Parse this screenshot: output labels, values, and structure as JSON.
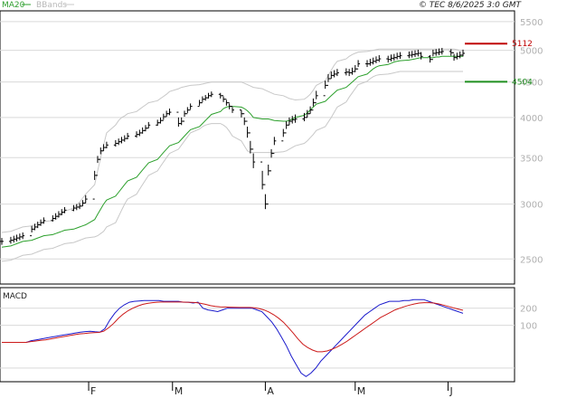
{
  "header": {
    "legend_ma": "MA20",
    "legend_bbands": "BBands",
    "copyright": "© TEC 8/6/2025 3:0 GMT"
  },
  "colors": {
    "price": "#000000",
    "ma20": "#2ca02c",
    "bbands": "#c8c8c8",
    "grid": "#d9d9d9",
    "resistance": "#c00000",
    "support": "#1f8f1f",
    "macd": "#1a1acc",
    "signal": "#cc1a1a",
    "axis_text": "#b0b0b0"
  },
  "chart_data": [
    {
      "type": "ohlc",
      "panel": "price",
      "x": [
        "2025-01-03",
        "2025-01-06",
        "2025-01-07",
        "2025-01-08",
        "2025-01-09",
        "2025-01-10",
        "2025-01-13",
        "2025-01-14",
        "2025-01-15",
        "2025-01-16",
        "2025-01-17",
        "2025-01-20",
        "2025-01-21",
        "2025-01-22",
        "2025-01-23",
        "2025-01-24",
        "2025-01-27",
        "2025-01-28",
        "2025-01-29",
        "2025-01-30",
        "2025-01-31",
        "2025-02-03",
        "2025-02-04",
        "2025-02-05",
        "2025-02-06",
        "2025-02-07",
        "2025-02-10",
        "2025-02-11",
        "2025-02-12",
        "2025-02-13",
        "2025-02-14",
        "2025-02-17",
        "2025-02-18",
        "2025-02-19",
        "2025-02-20",
        "2025-02-21",
        "2025-02-24",
        "2025-02-25",
        "2025-02-26",
        "2025-02-27",
        "2025-02-28",
        "2025-03-03",
        "2025-03-04",
        "2025-03-05",
        "2025-03-06",
        "2025-03-07",
        "2025-03-10",
        "2025-03-11",
        "2025-03-12",
        "2025-03-13",
        "2025-03-14",
        "2025-03-17",
        "2025-03-18",
        "2025-03-19",
        "2025-03-20",
        "2025-03-21",
        "2025-03-24",
        "2025-03-25",
        "2025-03-26",
        "2025-03-27",
        "2025-03-28",
        "2025-03-31",
        "2025-04-01",
        "2025-04-02",
        "2025-04-03",
        "2025-04-04",
        "2025-04-07",
        "2025-04-08",
        "2025-04-09",
        "2025-04-10",
        "2025-04-11",
        "2025-04-14",
        "2025-04-15",
        "2025-04-16",
        "2025-04-17",
        "2025-04-18",
        "2025-04-21",
        "2025-04-22",
        "2025-04-23",
        "2025-04-24",
        "2025-04-25",
        "2025-04-28",
        "2025-04-29",
        "2025-04-30",
        "2025-05-01",
        "2025-05-02",
        "2025-05-05",
        "2025-05-06",
        "2025-05-07",
        "2025-05-08",
        "2025-05-09",
        "2025-05-12",
        "2025-05-13",
        "2025-05-14",
        "2025-05-15",
        "2025-05-16",
        "2025-05-19",
        "2025-05-20",
        "2025-05-21",
        "2025-05-22",
        "2025-05-23",
        "2025-05-26",
        "2025-05-27",
        "2025-05-28",
        "2025-05-29",
        "2025-05-30",
        "2025-06-02",
        "2025-06-03",
        "2025-06-04",
        "2025-06-05",
        "2025-06-06"
      ],
      "close": [
        2650,
        2660,
        2670,
        2680,
        2690,
        2700,
        2760,
        2780,
        2800,
        2820,
        2840,
        2860,
        2880,
        2900,
        2920,
        2940,
        2960,
        2970,
        2980,
        3010,
        3050,
        3300,
        3480,
        3580,
        3620,
        3650,
        3670,
        3690,
        3710,
        3730,
        3760,
        3780,
        3800,
        3830,
        3860,
        3900,
        3930,
        3960,
        4010,
        4050,
        4070,
        3920,
        3950,
        4050,
        4100,
        4150,
        4200,
        4250,
        4270,
        4300,
        4320,
        4300,
        4250,
        4200,
        4150,
        4100,
        4050,
        3950,
        3800,
        3600,
        3450,
        3200,
        3000,
        3350,
        3550,
        3700,
        3800,
        3900,
        3950,
        3970,
        3980,
        4000,
        4050,
        4100,
        4200,
        4300,
        4450,
        4550,
        4600,
        4620,
        4640,
        4650,
        4640,
        4660,
        4700,
        4780,
        4780,
        4800,
        4820,
        4840,
        4860,
        4850,
        4870,
        4880,
        4900,
        4910,
        4920,
        4930,
        4940,
        4950,
        4900,
        4850,
        4950,
        4960,
        4970,
        4980,
        4960,
        4880,
        4900,
        4920,
        4950
      ],
      "high": [
        2680,
        2690,
        2700,
        2710,
        2720,
        2730,
        2790,
        2810,
        2830,
        2850,
        2870,
        2890,
        2910,
        2930,
        2950,
        2970,
        2990,
        3000,
        3010,
        3040,
        3090,
        3350,
        3520,
        3620,
        3660,
        3690,
        3710,
        3730,
        3750,
        3770,
        3800,
        3820,
        3840,
        3870,
        3900,
        3940,
        3970,
        4000,
        4050,
        4090,
        4120,
        4000,
        4000,
        4090,
        4140,
        4190,
        4240,
        4290,
        4310,
        4340,
        4360,
        4340,
        4290,
        4240,
        4190,
        4140,
        4100,
        4000,
        3880,
        3700,
        3550,
        3350,
        3100,
        3420,
        3600,
        3750,
        3850,
        3950,
        4000,
        4020,
        4040,
        4060,
        4100,
        4150,
        4260,
        4370,
        4520,
        4620,
        4660,
        4680,
        4700,
        4710,
        4700,
        4720,
        4760,
        4840,
        4840,
        4860,
        4880,
        4900,
        4920,
        4910,
        4930,
        4940,
        4960,
        4970,
        4980,
        4990,
        5000,
        5010,
        4970,
        4920,
        5010,
        5020,
        5030,
        5040,
        5020,
        4940,
        4960,
        4980,
        5010
      ],
      "low": [
        2620,
        2630,
        2640,
        2650,
        2660,
        2670,
        2730,
        2750,
        2770,
        2790,
        2810,
        2830,
        2850,
        2870,
        2890,
        2910,
        2930,
        2940,
        2950,
        2980,
        3010,
        3250,
        3440,
        3540,
        3580,
        3610,
        3630,
        3650,
        3670,
        3690,
        3720,
        3740,
        3760,
        3790,
        3820,
        3860,
        3890,
        3920,
        3970,
        4010,
        4030,
        3880,
        3900,
        4010,
        4060,
        4110,
        4160,
        4210,
        4230,
        4260,
        4280,
        4260,
        4210,
        4160,
        4110,
        4060,
        4000,
        3900,
        3740,
        3550,
        3380,
        3150,
        2950,
        3300,
        3500,
        3650,
        3750,
        3850,
        3900,
        3920,
        3930,
        3950,
        4000,
        4050,
        4150,
        4250,
        4400,
        4500,
        4550,
        4570,
        4590,
        4600,
        4590,
        4610,
        4650,
        4730,
        4730,
        4750,
        4770,
        4790,
        4810,
        4800,
        4820,
        4830,
        4850,
        4860,
        4870,
        4880,
        4890,
        4900,
        4850,
        4800,
        4900,
        4910,
        4920,
        4930,
        4910,
        4830,
        4850,
        4870,
        4900
      ],
      "ma20": [
        2600,
        2610,
        2620,
        2630,
        2640,
        2650,
        2660,
        2670,
        2680,
        2690,
        2700,
        2710,
        2720,
        2730,
        2740,
        2750,
        2760,
        2770,
        2780,
        2790,
        2800,
        2850,
        2900,
        2950,
        3000,
        3040,
        3080,
        3120,
        3160,
        3200,
        3240,
        3280,
        3320,
        3360,
        3400,
        3440,
        3480,
        3520,
        3560,
        3600,
        3640,
        3680,
        3720,
        3760,
        3800,
        3840,
        3880,
        3920,
        3960,
        4000,
        4040,
        4080,
        4120,
        4140,
        4150,
        4150,
        4140,
        4120,
        4090,
        4050,
        4000,
        3980,
        3980,
        3980,
        3970,
        3960,
        3950,
        3950,
        3960,
        3980,
        4000,
        4030,
        4060,
        4100,
        4140,
        4180,
        4220,
        4260,
        4300,
        4340,
        4380,
        4420,
        4460,
        4500,
        4540,
        4580,
        4620,
        4660,
        4700,
        4730,
        4750,
        4770,
        4790,
        4810,
        4820,
        4830,
        4840,
        4850,
        4860,
        4870,
        4880,
        4880,
        4880,
        4890,
        4890,
        4900,
        4900,
        4900,
        4900,
        4900,
        4900
      ],
      "bb_upper": [
        2730,
        2740,
        2750,
        2760,
        2770,
        2780,
        2790,
        2800,
        2810,
        2820,
        2830,
        2840,
        2850,
        2870,
        2900,
        2930,
        2960,
        2990,
        3020,
        3060,
        3100,
        3200,
        3350,
        3500,
        3650,
        3800,
        3900,
        3960,
        4000,
        4020,
        4050,
        4080,
        4110,
        4140,
        4170,
        4200,
        4230,
        4260,
        4290,
        4320,
        4360,
        4400,
        4420,
        4430,
        4440,
        4450,
        4460,
        4470,
        4480,
        4490,
        4500,
        4500,
        4500,
        4500,
        4500,
        4500,
        4500,
        4480,
        4460,
        4440,
        4420,
        4400,
        4380,
        4360,
        4340,
        4320,
        4300,
        4280,
        4260,
        4250,
        4240,
        4250,
        4280,
        4320,
        4380,
        4450,
        4520,
        4600,
        4680,
        4760,
        4820,
        4860,
        4900,
        4930,
        4950,
        4970,
        4980,
        4990,
        5000,
        5010,
        5020,
        5020,
        5020,
        5020,
        5020,
        5020,
        5020,
        5020,
        5020,
        5020,
        5020,
        5020,
        5020,
        5020,
        5020,
        5020,
        5020,
        5020,
        5010,
        5000,
        5000
      ],
      "bb_lower": [
        2480,
        2490,
        2500,
        2510,
        2520,
        2530,
        2540,
        2550,
        2560,
        2570,
        2580,
        2590,
        2600,
        2610,
        2620,
        2630,
        2640,
        2650,
        2660,
        2670,
        2680,
        2690,
        2700,
        2720,
        2740,
        2780,
        2820,
        2880,
        2940,
        3000,
        3050,
        3100,
        3150,
        3200,
        3250,
        3300,
        3350,
        3400,
        3450,
        3500,
        3550,
        3600,
        3650,
        3700,
        3750,
        3800,
        3850,
        3880,
        3900,
        3910,
        3920,
        3920,
        3900,
        3870,
        3820,
        3760,
        3700,
        3640,
        3580,
        3560,
        3560,
        3560,
        3560,
        3560,
        3560,
        3560,
        3570,
        3580,
        3600,
        3620,
        3640,
        3670,
        3700,
        3740,
        3780,
        3830,
        3880,
        3940,
        4000,
        4070,
        4140,
        4210,
        4280,
        4340,
        4400,
        4460,
        4510,
        4550,
        4580,
        4600,
        4610,
        4620,
        4630,
        4640,
        4650,
        4660,
        4660,
        4660,
        4660,
        4660,
        4660,
        4660,
        4660,
        4660,
        4660,
        4660,
        4660,
        4660,
        4660,
        4660,
        4660
      ],
      "y_axis_labels": [
        "2500",
        "3000",
        "3500",
        "4000",
        "4500",
        "5000",
        "5500"
      ],
      "ylim": [
        2300,
        5700
      ],
      "log_scale": true,
      "grid": true,
      "price_lines": [
        {
          "label": "5112",
          "value": 5112,
          "color": "#c00000"
        },
        {
          "label": "4504",
          "value": 4504,
          "color": "#1f8f1f"
        }
      ]
    },
    {
      "type": "line",
      "panel": "MACD",
      "title": "MACD",
      "x_labels": [
        "F",
        "M",
        "A",
        "M",
        "J"
      ],
      "x_label_dates": [
        "2025-02-01",
        "2025-03-01",
        "2025-04-01",
        "2025-05-01",
        "2025-06-01"
      ],
      "series": [
        {
          "values": [
            0,
            0,
            0,
            0,
            0,
            0,
            10,
            15,
            20,
            25,
            30,
            35,
            40,
            45,
            50,
            55,
            60,
            63,
            65,
            62,
            60,
            80,
            130,
            170,
            200,
            220,
            235,
            240,
            242,
            245,
            245,
            245,
            245,
            240,
            240,
            240,
            240,
            235,
            235,
            230,
            235,
            200,
            190,
            185,
            180,
            190,
            200,
            200,
            200,
            200,
            200,
            200,
            190,
            180,
            150,
            120,
            80,
            30,
            -20,
            -80,
            -130,
            -180,
            -200,
            -180,
            -150,
            -110,
            -80,
            -50,
            -20,
            10,
            40,
            70,
            100,
            130,
            160,
            180,
            200,
            220,
            230,
            240,
            240,
            240,
            245,
            245,
            250,
            250,
            250,
            240,
            230,
            220,
            210,
            200,
            190,
            180,
            170
          ]
        },
        {
          "values": [
            0,
            0,
            0,
            0,
            0,
            0,
            5,
            8,
            12,
            15,
            20,
            25,
            30,
            35,
            40,
            45,
            50,
            52,
            55,
            57,
            58,
            65,
            85,
            110,
            140,
            165,
            185,
            200,
            212,
            222,
            228,
            232,
            235,
            236,
            236,
            236,
            236,
            236,
            235,
            234,
            233,
            228,
            222,
            215,
            210,
            208,
            207,
            206,
            205,
            204,
            204,
            204,
            202,
            198,
            190,
            178,
            162,
            142,
            118,
            88,
            55,
            20,
            -10,
            -30,
            -45,
            -55,
            -55,
            -50,
            -40,
            -28,
            -12,
            5,
            25,
            45,
            65,
            85,
            105,
            125,
            145,
            160,
            175,
            190,
            200,
            210,
            218,
            225,
            230,
            232,
            232,
            230,
            225,
            218,
            210,
            202,
            195,
            188
          ]
        }
      ],
      "y_axis_labels": [
        "100",
        "200"
      ],
      "ylim": [
        -230,
        320
      ],
      "grid": true
    }
  ],
  "axis": {
    "price_ticks": [
      "2500",
      "3000",
      "3500",
      "4000",
      "4500",
      "5000",
      "5500"
    ],
    "macd_ticks": [
      "100",
      "200"
    ],
    "month_ticks": [
      "F",
      "M",
      "A",
      "M",
      "J"
    ]
  }
}
